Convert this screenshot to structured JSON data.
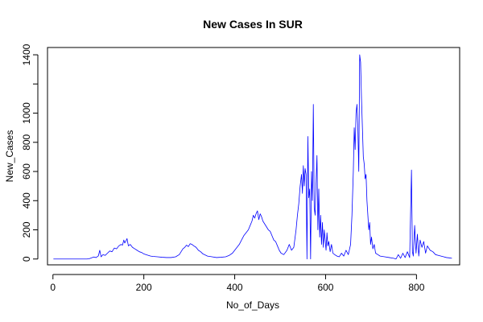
{
  "chart_data": {
    "type": "line",
    "title": "New Cases In SUR",
    "xlabel": "No_of_Days",
    "ylabel": "New_Cases",
    "xlim": [
      -12,
      895
    ],
    "ylim": [
      -40,
      1450
    ],
    "x_ticks": [
      0,
      200,
      400,
      600,
      800
    ],
    "y_ticks": [
      0,
      200,
      400,
      600,
      800,
      1000,
      1200,
      1400
    ],
    "y_tick_labels": [
      "0",
      "200",
      "400",
      "600",
      "800",
      "1000",
      "",
      "1400"
    ],
    "grid": false,
    "legend": "none",
    "series": [
      {
        "color": "#0000ff",
        "points": [
          [
            1,
            0
          ],
          [
            75,
            0
          ],
          [
            80,
            2
          ],
          [
            85,
            8
          ],
          [
            90,
            14
          ],
          [
            95,
            10
          ],
          [
            100,
            22
          ],
          [
            103,
            60
          ],
          [
            106,
            15
          ],
          [
            110,
            30
          ],
          [
            115,
            25
          ],
          [
            120,
            40
          ],
          [
            125,
            55
          ],
          [
            130,
            50
          ],
          [
            135,
            75
          ],
          [
            140,
            70
          ],
          [
            145,
            90
          ],
          [
            150,
            100
          ],
          [
            153,
            95
          ],
          [
            156,
            130
          ],
          [
            158,
            110
          ],
          [
            160,
            120
          ],
          [
            163,
            140
          ],
          [
            166,
            90
          ],
          [
            170,
            100
          ],
          [
            175,
            80
          ],
          [
            180,
            70
          ],
          [
            185,
            60
          ],
          [
            190,
            50
          ],
          [
            195,
            45
          ],
          [
            200,
            35
          ],
          [
            205,
            30
          ],
          [
            210,
            25
          ],
          [
            215,
            20
          ],
          [
            220,
            18
          ],
          [
            230,
            15
          ],
          [
            240,
            12
          ],
          [
            250,
            10
          ],
          [
            260,
            10
          ],
          [
            270,
            15
          ],
          [
            278,
            30
          ],
          [
            282,
            50
          ],
          [
            286,
            70
          ],
          [
            290,
            80
          ],
          [
            294,
            95
          ],
          [
            298,
            85
          ],
          [
            302,
            105
          ],
          [
            306,
            100
          ],
          [
            310,
            90
          ],
          [
            315,
            80
          ],
          [
            320,
            60
          ],
          [
            325,
            50
          ],
          [
            330,
            35
          ],
          [
            340,
            20
          ],
          [
            350,
            15
          ],
          [
            360,
            10
          ],
          [
            370,
            12
          ],
          [
            380,
            15
          ],
          [
            388,
            25
          ],
          [
            395,
            40
          ],
          [
            400,
            60
          ],
          [
            405,
            80
          ],
          [
            410,
            100
          ],
          [
            415,
            130
          ],
          [
            420,
            160
          ],
          [
            425,
            180
          ],
          [
            430,
            200
          ],
          [
            434,
            230
          ],
          [
            438,
            260
          ],
          [
            441,
            300
          ],
          [
            444,
            280
          ],
          [
            447,
            310
          ],
          [
            450,
            330
          ],
          [
            453,
            270
          ],
          [
            456,
            310
          ],
          [
            459,
            290
          ],
          [
            462,
            260
          ],
          [
            466,
            240
          ],
          [
            470,
            220
          ],
          [
            474,
            200
          ],
          [
            478,
            190
          ],
          [
            482,
            160
          ],
          [
            486,
            130
          ],
          [
            490,
            120
          ],
          [
            494,
            90
          ],
          [
            498,
            60
          ],
          [
            502,
            40
          ],
          [
            508,
            30
          ],
          [
            515,
            60
          ],
          [
            520,
            100
          ],
          [
            525,
            60
          ],
          [
            530,
            80
          ],
          [
            535,
            200
          ],
          [
            538,
            300
          ],
          [
            541,
            380
          ],
          [
            544,
            500
          ],
          [
            547,
            580
          ],
          [
            549,
            450
          ],
          [
            551,
            640
          ],
          [
            553,
            500
          ],
          [
            555,
            620
          ],
          [
            557,
            580
          ],
          [
            559,
            0
          ],
          [
            561,
            840
          ],
          [
            563,
            420
          ],
          [
            565,
            480
          ],
          [
            567,
            0
          ],
          [
            569,
            600
          ],
          [
            571,
            400
          ],
          [
            573,
            1060
          ],
          [
            575,
            350
          ],
          [
            577,
            300
          ],
          [
            579,
            520
          ],
          [
            581,
            710
          ],
          [
            583,
            200
          ],
          [
            585,
            480
          ],
          [
            587,
            150
          ],
          [
            589,
            300
          ],
          [
            591,
            100
          ],
          [
            593,
            250
          ],
          [
            595,
            80
          ],
          [
            597,
            200
          ],
          [
            599,
            130
          ],
          [
            601,
            60
          ],
          [
            603,
            180
          ],
          [
            605,
            90
          ],
          [
            607,
            120
          ],
          [
            610,
            50
          ],
          [
            613,
            100
          ],
          [
            616,
            40
          ],
          [
            620,
            30
          ],
          [
            625,
            20
          ],
          [
            630,
            15
          ],
          [
            635,
            40
          ],
          [
            640,
            20
          ],
          [
            645,
            60
          ],
          [
            650,
            30
          ],
          [
            655,
            100
          ],
          [
            658,
            300
          ],
          [
            661,
            600
          ],
          [
            663,
            900
          ],
          [
            665,
            750
          ],
          [
            667,
            1000
          ],
          [
            669,
            1060
          ],
          [
            671,
            900
          ],
          [
            673,
            600
          ],
          [
            675,
            1400
          ],
          [
            677,
            1350
          ],
          [
            679,
            1100
          ],
          [
            681,
            900
          ],
          [
            683,
            700
          ],
          [
            685,
            650
          ],
          [
            687,
            550
          ],
          [
            689,
            580
          ],
          [
            691,
            400
          ],
          [
            693,
            300
          ],
          [
            695,
            200
          ],
          [
            697,
            250
          ],
          [
            699,
            100
          ],
          [
            701,
            150
          ],
          [
            704,
            70
          ],
          [
            707,
            100
          ],
          [
            710,
            40
          ],
          [
            715,
            30
          ],
          [
            720,
            20
          ],
          [
            730,
            15
          ],
          [
            740,
            10
          ],
          [
            750,
            5
          ],
          [
            755,
            0
          ],
          [
            760,
            30
          ],
          [
            765,
            5
          ],
          [
            770,
            40
          ],
          [
            775,
            10
          ],
          [
            780,
            50
          ],
          [
            785,
            10
          ],
          [
            789,
            610
          ],
          [
            791,
            50
          ],
          [
            793,
            20
          ],
          [
            796,
            230
          ],
          [
            799,
            40
          ],
          [
            802,
            170
          ],
          [
            805,
            20
          ],
          [
            808,
            130
          ],
          [
            812,
            80
          ],
          [
            816,
            120
          ],
          [
            820,
            40
          ],
          [
            824,
            90
          ],
          [
            830,
            60
          ],
          [
            836,
            50
          ],
          [
            842,
            30
          ],
          [
            848,
            25
          ],
          [
            854,
            20
          ],
          [
            860,
            15
          ],
          [
            866,
            10
          ],
          [
            872,
            8
          ],
          [
            878,
            5
          ]
        ]
      }
    ]
  }
}
